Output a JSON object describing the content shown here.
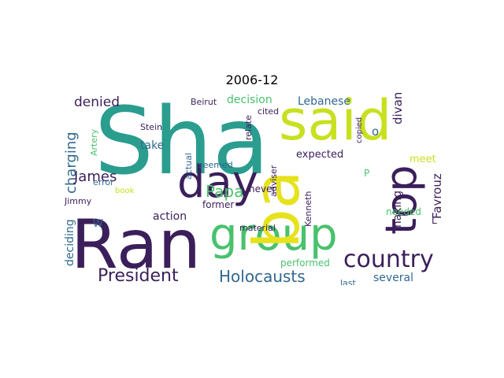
{
  "title": "2006-12",
  "words": {
    "sha": "Sha",
    "said": "said",
    "ran": "Ran",
    "day": "day",
    "group": "group",
    "ba": "ba",
    "top": "top",
    "country": "country",
    "president": "President",
    "holocausts": "Holocausts",
    "denied": "denied",
    "charging": "charging",
    "james": "James",
    "papa": "Papa",
    "action": "action",
    "deciding": "deciding",
    "decision": "decision",
    "lebanese": "Lebanese",
    "expected": "expected",
    "divan": "divan",
    "fayrouz": "Fayrouz",
    "making": "making",
    "meet": "meet",
    "several": "several",
    "needed": "needed",
    "performed": "performed",
    "material": "material",
    "kenneth": "Kenneth",
    "former": "former",
    "seemed": "seemed",
    "beirut": "Beirut",
    "stein": "Stein",
    "take": "take",
    "jimmy": "Jimmy",
    "error": "error",
    "book": "book",
    "actual": "actual",
    "adviser": "adviser",
    "relate": "relate",
    "never": "never",
    "cited": "cited",
    "copied": "copied",
    "last": "last",
    "artery": "Artery",
    "o": "o",
    "p": "P",
    "l": "L",
    "w": "W"
  },
  "colors": {
    "teal": "#2a9d8f",
    "yellowgreen": "#c8e020",
    "darkpurple": "#3b1f5a",
    "green": "#49c16d",
    "blue": "#31688e",
    "indigo": "#443983"
  }
}
